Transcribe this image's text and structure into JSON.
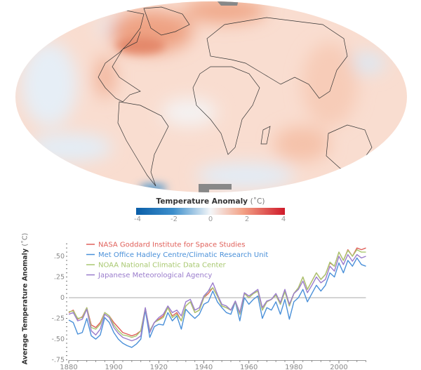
{
  "colorbar": {
    "title": "Temperature Anomaly",
    "unit": "(˚C)",
    "ticks": [
      "-4",
      "-2",
      "0",
      "2",
      "4"
    ],
    "colors": {
      "cold": "#0a5ea8",
      "neutral": "#f4f6f8",
      "warm": "#cf1a2a"
    }
  },
  "chart_data": {
    "type": "line",
    "title": "",
    "xlabel": "",
    "ylabel": "Average Temperature Anomaly",
    "ylabel_unit": "(˚C)",
    "xlim": [
      1880,
      2012
    ],
    "ylim": [
      -0.75,
      0.7
    ],
    "x_ticks": [
      "1880",
      "1900",
      "1920",
      "1940",
      "1960",
      "1980",
      "2000"
    ],
    "y_ticks": [
      ".50",
      ".25",
      "0",
      "-.25",
      "-.50",
      "-.75"
    ],
    "y_tick_values": [
      0.5,
      0.25,
      0,
      -0.25,
      -0.5,
      -0.75
    ],
    "legend_position": "top-left",
    "x_start": 1880,
    "x_step": 2,
    "series": [
      {
        "name": "NASA Goddard Institute for Space Studies",
        "color": "#e0605a",
        "values": [
          -0.18,
          -0.15,
          -0.26,
          -0.23,
          -0.12,
          -0.33,
          -0.36,
          -0.3,
          -0.18,
          -0.22,
          -0.3,
          -0.36,
          -0.42,
          -0.44,
          -0.46,
          -0.44,
          -0.4,
          -0.13,
          -0.4,
          -0.3,
          -0.26,
          -0.22,
          -0.12,
          -0.22,
          -0.18,
          -0.28,
          -0.1,
          -0.05,
          -0.18,
          -0.15,
          0.0,
          0.05,
          0.12,
          0.02,
          -0.1,
          -0.12,
          -0.15,
          -0.05,
          -0.2,
          0.05,
          0.0,
          0.05,
          0.08,
          -0.15,
          -0.05,
          -0.02,
          0.03,
          -0.08,
          0.08,
          -0.1,
          0.05,
          0.12,
          0.25,
          0.1,
          0.2,
          0.3,
          0.22,
          0.28,
          0.42,
          0.38,
          0.55,
          0.45,
          0.58,
          0.5,
          0.6,
          0.58,
          0.6
        ]
      },
      {
        "name": "Met Office Hadley Centre/Climatic Research Unit",
        "color": "#4a90d9",
        "values": [
          -0.27,
          -0.3,
          -0.44,
          -0.42,
          -0.25,
          -0.46,
          -0.5,
          -0.45,
          -0.24,
          -0.3,
          -0.42,
          -0.5,
          -0.55,
          -0.58,
          -0.6,
          -0.56,
          -0.5,
          -0.15,
          -0.48,
          -0.35,
          -0.32,
          -0.33,
          -0.18,
          -0.28,
          -0.22,
          -0.38,
          -0.14,
          -0.2,
          -0.25,
          -0.2,
          -0.08,
          -0.05,
          0.08,
          -0.05,
          -0.12,
          -0.18,
          -0.2,
          -0.05,
          -0.28,
          0.0,
          -0.08,
          -0.02,
          0.02,
          -0.25,
          -0.12,
          -0.15,
          -0.05,
          -0.2,
          -0.02,
          -0.26,
          -0.05,
          0.0,
          0.1,
          -0.05,
          0.05,
          0.15,
          0.08,
          0.15,
          0.3,
          0.25,
          0.42,
          0.3,
          0.45,
          0.38,
          0.48,
          0.4,
          0.38
        ]
      },
      {
        "name": "NOAA National Climatic Data Center",
        "color": "#a8c870",
        "values": [
          -0.17,
          -0.16,
          -0.25,
          -0.24,
          -0.12,
          -0.36,
          -0.38,
          -0.32,
          -0.18,
          -0.22,
          -0.33,
          -0.4,
          -0.45,
          -0.46,
          -0.48,
          -0.46,
          -0.4,
          -0.13,
          -0.4,
          -0.3,
          -0.27,
          -0.24,
          -0.12,
          -0.24,
          -0.2,
          -0.28,
          -0.1,
          -0.05,
          -0.18,
          -0.15,
          0.0,
          0.08,
          0.12,
          0.02,
          -0.1,
          -0.12,
          -0.15,
          -0.05,
          -0.2,
          0.05,
          0.0,
          0.05,
          0.08,
          -0.15,
          -0.05,
          -0.02,
          0.03,
          -0.08,
          0.07,
          -0.1,
          0.05,
          0.12,
          0.25,
          0.1,
          0.2,
          0.3,
          0.22,
          0.28,
          0.43,
          0.38,
          0.55,
          0.45,
          0.57,
          0.5,
          0.58,
          0.55,
          0.55
        ]
      },
      {
        "name": "Japanese Meteorological Agency",
        "color": "#9a7ccc",
        "values": [
          -0.2,
          -0.18,
          -0.28,
          -0.26,
          -0.14,
          -0.4,
          -0.45,
          -0.38,
          -0.2,
          -0.24,
          -0.36,
          -0.43,
          -0.48,
          -0.5,
          -0.52,
          -0.5,
          -0.46,
          -0.12,
          -0.42,
          -0.3,
          -0.24,
          -0.2,
          -0.1,
          -0.18,
          -0.15,
          -0.22,
          -0.05,
          -0.02,
          -0.15,
          -0.12,
          0.02,
          0.08,
          0.18,
          0.04,
          -0.08,
          -0.1,
          -0.15,
          -0.04,
          -0.18,
          0.06,
          0.02,
          0.06,
          0.1,
          -0.12,
          -0.04,
          -0.02,
          0.05,
          -0.06,
          0.1,
          -0.08,
          0.05,
          0.1,
          0.2,
          0.06,
          0.15,
          0.25,
          0.18,
          0.22,
          0.38,
          0.32,
          0.5,
          0.4,
          0.52,
          0.44,
          0.52,
          0.48,
          0.5
        ]
      }
    ]
  }
}
